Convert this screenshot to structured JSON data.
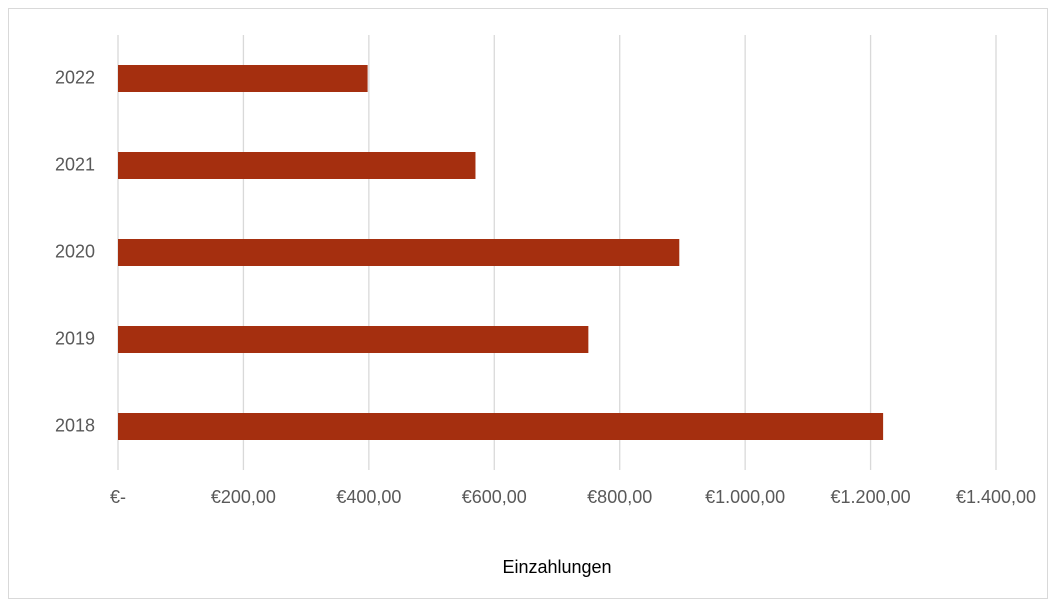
{
  "chart_data": {
    "type": "barh",
    "categories": [
      "2018",
      "2019",
      "2020",
      "2021",
      "2022"
    ],
    "values": [
      1220,
      750,
      895,
      570,
      398
    ],
    "color": "#a52f0f",
    "xlabel": "Einzahlungen",
    "xlim": [
      0,
      1400
    ],
    "xticks": [
      {
        "value": 0,
        "label": "€-"
      },
      {
        "value": 200,
        "label": "€200,00"
      },
      {
        "value": 400,
        "label": "€400,00"
      },
      {
        "value": 600,
        "label": "€600,00"
      },
      {
        "value": 800,
        "label": "€800,00"
      },
      {
        "value": 1000,
        "label": "€1.000,00"
      },
      {
        "value": 1200,
        "label": "€1.200,00"
      },
      {
        "value": 1400,
        "label": "€1.400,00"
      }
    ],
    "grid": true
  }
}
